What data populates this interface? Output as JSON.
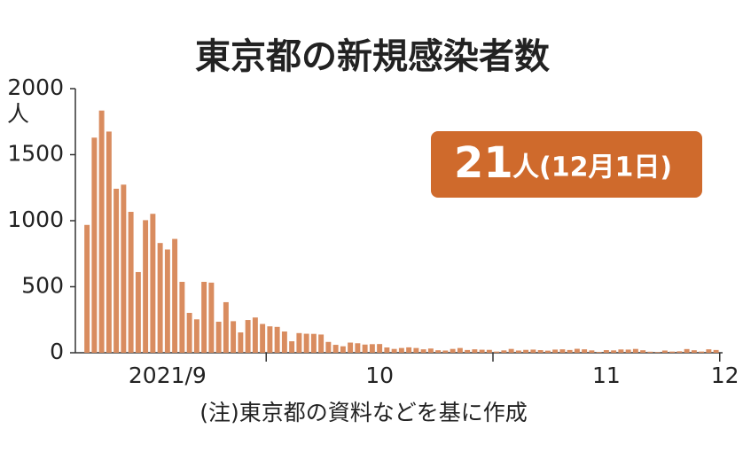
{
  "chart_data": {
    "type": "bar",
    "title": "東京都の新規感染者数",
    "y_unit": "人",
    "annotation": {
      "number": "21",
      "text": "人(12月1日)"
    },
    "note": "(注)東京都の資料などを基に作成",
    "color": "#d98c5f",
    "annotation_color": "#cf6a2c",
    "categories": [
      null,
      null,
      null,
      null,
      null,
      null,
      null,
      null,
      null,
      null,
      null,
      "2021/9",
      null,
      null,
      null,
      null,
      null,
      null,
      null,
      null,
      null,
      null,
      null,
      null,
      null,
      null,
      null,
      null,
      null,
      null,
      null,
      null,
      null,
      null,
      null,
      null,
      null,
      null,
      null,
      null,
      "10",
      null,
      null,
      null,
      null,
      null,
      null,
      null,
      null,
      null,
      null,
      null,
      null,
      null,
      null,
      null,
      null,
      null,
      null,
      null,
      null,
      null,
      null,
      null,
      null,
      null,
      null,
      null,
      null,
      null,
      null,
      "11",
      null,
      null,
      null,
      null,
      null,
      null,
      null,
      null,
      null,
      null,
      null,
      null,
      null,
      null,
      "12"
    ],
    "values": [
      968,
      1629,
      1834,
      1675,
      1242,
      1273,
      1067,
      611,
      1004,
      1052,
      831,
      782,
      862,
      537,
      302,
      253,
      537,
      531,
      235,
      383,
      239,
      154,
      248,
      267,
      218,
      200,
      196,
      161,
      87,
      149,
      144,
      143,
      138,
      82,
      60,
      49,
      77,
      72,
      62,
      65,
      66,
      40,
      29,
      36,
      41,
      36,
      26,
      32,
      19,
      17,
      29,
      36,
      21,
      26,
      23,
      22,
      9,
      18,
      29,
      17,
      22,
      24,
      20,
      16,
      24,
      26,
      21,
      30,
      26,
      18,
      6,
      20,
      18,
      25,
      24,
      29,
      19,
      8,
      5,
      17,
      9,
      11,
      28,
      19,
      9,
      26,
      21
    ],
    "ylim": [
      0,
      2000
    ],
    "yticks": [
      0,
      500,
      1000,
      1500,
      2000
    ]
  }
}
